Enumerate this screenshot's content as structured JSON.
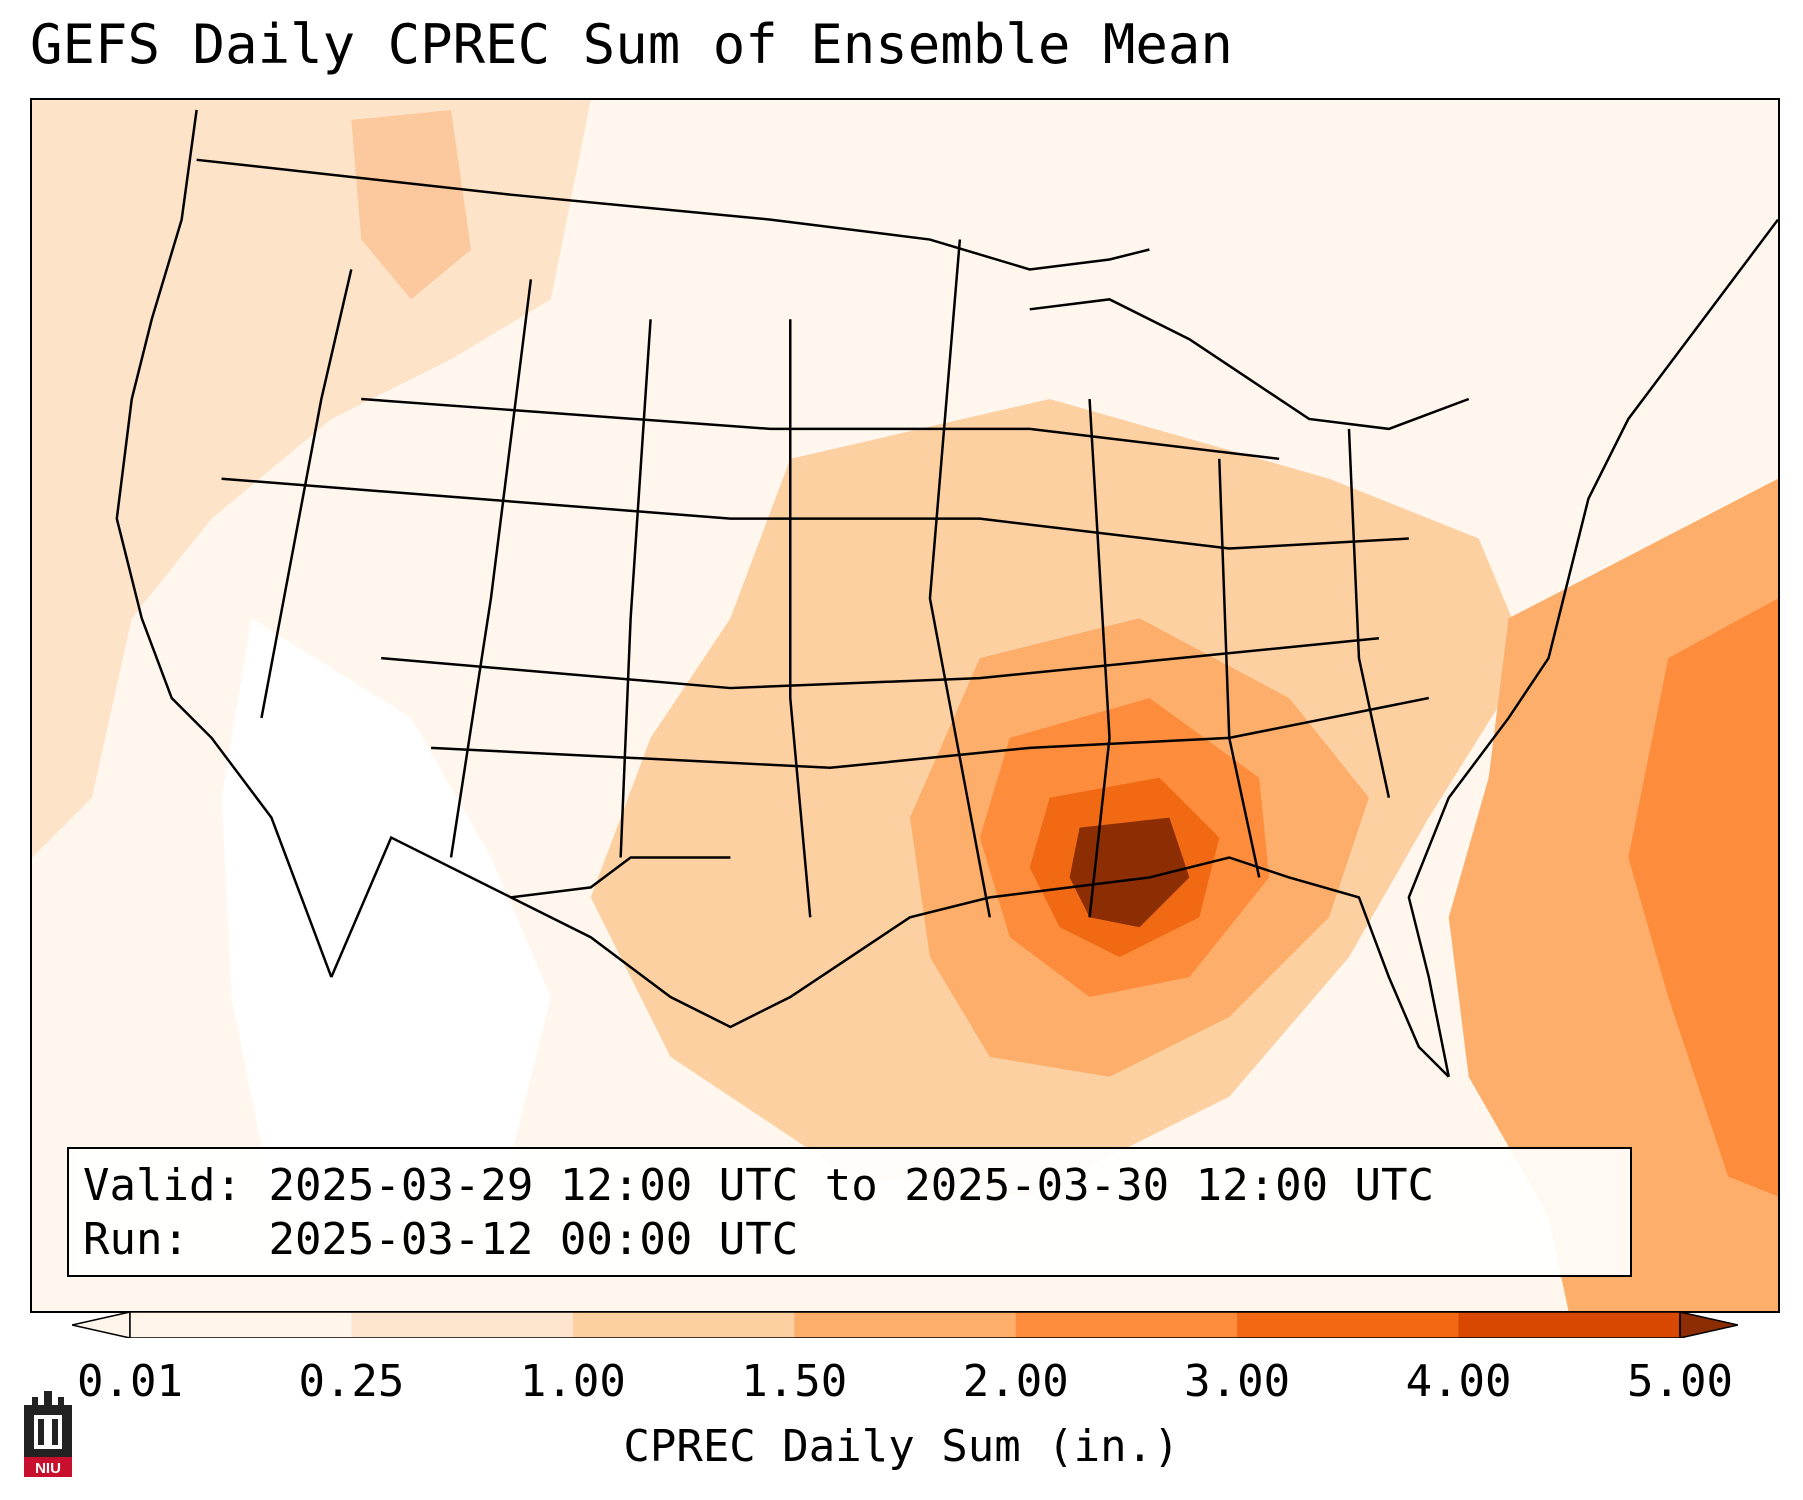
{
  "title": "GEFS Daily CPREC Sum of Ensemble Mean",
  "info": {
    "valid_label": "Valid:",
    "valid_value": "2025-03-29 12:00 UTC to 2025-03-30 12:00 UTC",
    "run_label": "Run:",
    "run_value": "2025-03-12 00:00 UTC"
  },
  "colorbar": {
    "label": "CPREC Daily Sum (in.)",
    "ticks": [
      "0.01",
      "0.25",
      "1.00",
      "1.50",
      "2.00",
      "3.00",
      "4.00",
      "5.00"
    ],
    "colors": [
      "#fff5eb",
      "#fee6ce",
      "#fdd0a2",
      "#fdae6b",
      "#fd8d3c",
      "#f16913",
      "#d94801",
      "#8c2d04"
    ],
    "extend": "both"
  },
  "logo": {
    "text": "NIU",
    "color": "#c8102e"
  }
}
